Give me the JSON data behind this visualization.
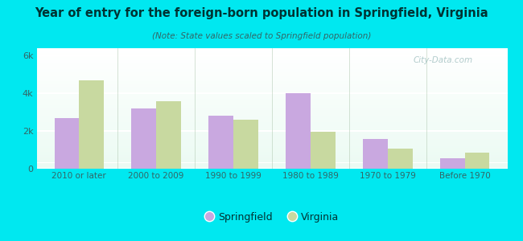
{
  "title": "Year of entry for the foreign-born population in Springfield, Virginia",
  "subtitle": "(Note: State values scaled to Springfield population)",
  "categories": [
    "2010 or later",
    "2000 to 2009",
    "1990 to 1999",
    "1980 to 1989",
    "1970 to 1979",
    "Before 1970"
  ],
  "springfield_values": [
    2700,
    3200,
    2800,
    4000,
    1600,
    550
  ],
  "virginia_values": [
    4700,
    3600,
    2600,
    1950,
    1050,
    850
  ],
  "springfield_color": "#c9a8e0",
  "virginia_color": "#c8d9a0",
  "background_color": "#00e8f0",
  "ylim": [
    0,
    6400
  ],
  "yticks": [
    0,
    2000,
    4000,
    6000
  ],
  "ytick_labels": [
    "0",
    "2k",
    "4k",
    "6k"
  ],
  "bar_width": 0.32,
  "legend_labels": [
    "Springfield",
    "Virginia"
  ],
  "title_color": "#003333",
  "subtitle_color": "#336666",
  "tick_color": "#336666",
  "watermark": "City-Data.com"
}
